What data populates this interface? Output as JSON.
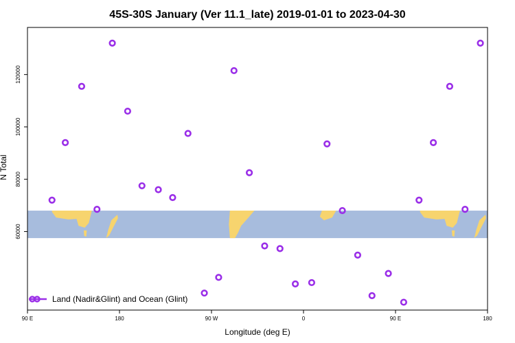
{
  "chart_data": {
    "type": "scatter",
    "title": "45S-30S January (Ver 11.1_late)   2019-01-01 to 2023-04-30",
    "xlabel": "Longitude (deg E)",
    "ylabel": "N Total",
    "x_ticks": [
      {
        "value": 90,
        "label": "90 E"
      },
      {
        "value": 180,
        "label": "180"
      },
      {
        "value": 270,
        "label": "90 W"
      },
      {
        "value": 360,
        "label": "0"
      },
      {
        "value": 450,
        "label": "90 E"
      },
      {
        "value": 540,
        "label": "180"
      }
    ],
    "y_ticks": [
      {
        "value": 60000,
        "label": "60000"
      },
      {
        "value": 80000,
        "label": "80000"
      },
      {
        "value": 100000,
        "label": "100000"
      },
      {
        "value": 120000,
        "label": "120000"
      }
    ],
    "xlim": [
      90,
      540
    ],
    "ylim": [
      30000,
      138000
    ],
    "grid": false,
    "legend_position": "bottom-left",
    "map_band": {
      "y_bottom": 57500,
      "y_top": 68000
    },
    "series": [
      {
        "name": "Land (Nadir&Glint) and Ocean (Glint)",
        "color": "#9a2ee8",
        "marker": "circle-open",
        "points": [
          {
            "x": 114,
            "y": 72000
          },
          {
            "x": 127,
            "y": 94000
          },
          {
            "x": 143,
            "y": 115500
          },
          {
            "x": 158,
            "y": 68500
          },
          {
            "x": 173,
            "y": 132000
          },
          {
            "x": 188,
            "y": 106000
          },
          {
            "x": 202,
            "y": 77500
          },
          {
            "x": 218,
            "y": 76000
          },
          {
            "x": 232,
            "y": 73000
          },
          {
            "x": 247,
            "y": 97500
          },
          {
            "x": 263,
            "y": 36500
          },
          {
            "x": 277,
            "y": 42500
          },
          {
            "x": 292,
            "y": 121500
          },
          {
            "x": 307,
            "y": 82500
          },
          {
            "x": 322,
            "y": 54500
          },
          {
            "x": 337,
            "y": 53500
          },
          {
            "x": 352,
            "y": 40000
          },
          {
            "x": 368,
            "y": 40500
          },
          {
            "x": 383,
            "y": 93500
          },
          {
            "x": 398,
            "y": 68000
          },
          {
            "x": 413,
            "y": 51000
          },
          {
            "x": 427,
            "y": 35500
          },
          {
            "x": 443,
            "y": 44000
          },
          {
            "x": 458,
            "y": 33000
          },
          {
            "x": 473,
            "y": 72000
          },
          {
            "x": 487,
            "y": 94000
          },
          {
            "x": 503,
            "y": 115500
          },
          {
            "x": 518,
            "y": 68500
          },
          {
            "x": 533,
            "y": 132000
          }
        ]
      }
    ]
  }
}
